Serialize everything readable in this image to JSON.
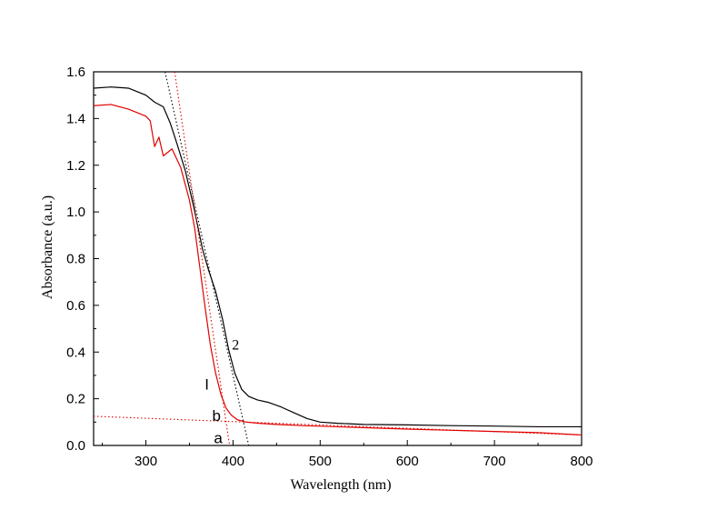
{
  "chart_data": {
    "type": "line",
    "title": "",
    "xlabel": "Wavelength (nm)",
    "ylabel": "Absorbance (a.u.)",
    "xlim": [
      240,
      800
    ],
    "ylim": [
      0.0,
      1.6
    ],
    "x_ticks": [
      300,
      400,
      500,
      600,
      700,
      800
    ],
    "x_tick_labels": [
      "300",
      "400",
      "500",
      "600",
      "700",
      "800"
    ],
    "y_ticks": [
      0.0,
      0.2,
      0.4,
      0.6,
      0.8,
      1.0,
      1.2,
      1.4,
      1.6
    ],
    "y_tick_labels": [
      "0.0",
      "0.2",
      "0.4",
      "0.6",
      "0.8",
      "1.0",
      "1.2",
      "1.4",
      "1.6"
    ],
    "grid": false,
    "series": [
      {
        "name": "2",
        "color": "#000000",
        "style": "solid",
        "x": [
          240,
          260,
          280,
          300,
          310,
          320,
          328,
          335,
          345,
          355,
          365,
          372,
          380,
          388,
          395,
          402,
          410,
          418,
          428,
          440,
          455,
          470,
          485,
          500,
          520,
          550,
          600,
          650,
          700,
          750,
          800
        ],
        "y": [
          1.53,
          1.535,
          1.53,
          1.5,
          1.47,
          1.45,
          1.38,
          1.3,
          1.18,
          1.02,
          0.84,
          0.75,
          0.66,
          0.54,
          0.41,
          0.31,
          0.24,
          0.21,
          0.195,
          0.185,
          0.165,
          0.14,
          0.115,
          0.1,
          0.095,
          0.09,
          0.088,
          0.085,
          0.083,
          0.08,
          0.08
        ]
      },
      {
        "name": "1",
        "color": "#e00000",
        "style": "solid",
        "x": [
          240,
          260,
          280,
          300,
          305,
          310,
          315,
          320,
          330,
          340,
          350,
          356,
          362,
          368,
          374,
          380,
          386,
          392,
          398,
          405,
          415,
          430,
          450,
          480,
          520,
          560,
          600,
          650,
          700,
          750,
          800
        ],
        "y": [
          1.455,
          1.46,
          1.44,
          1.41,
          1.39,
          1.28,
          1.32,
          1.24,
          1.27,
          1.19,
          1.05,
          0.93,
          0.76,
          0.59,
          0.43,
          0.31,
          0.22,
          0.16,
          0.13,
          0.11,
          0.1,
          0.095,
          0.09,
          0.085,
          0.08,
          0.075,
          0.07,
          0.065,
          0.06,
          0.055,
          0.045
        ]
      },
      {
        "name": "tangent-1-edge",
        "color": "#e00000",
        "style": "dotted",
        "x": [
          333,
          396
        ],
        "y": [
          1.6,
          0.0
        ]
      },
      {
        "name": "tangent-2-edge",
        "color": "#000000",
        "style": "dotted",
        "x": [
          322,
          418
        ],
        "y": [
          1.6,
          0.0
        ]
      },
      {
        "name": "baseline",
        "color": "#e00000",
        "style": "dotted",
        "x": [
          240,
          800
        ],
        "y": [
          0.125,
          0.045
        ]
      }
    ],
    "annotations": [
      {
        "text": "2",
        "x": 403,
        "y": 0.41,
        "font": "serif"
      },
      {
        "text": "I",
        "x": 370,
        "y": 0.24,
        "font": "sans"
      },
      {
        "text": "b",
        "x": 381,
        "y": 0.105,
        "font": "sans"
      },
      {
        "text": "a",
        "x": 383,
        "y": 0.01,
        "font": "sans"
      }
    ]
  }
}
